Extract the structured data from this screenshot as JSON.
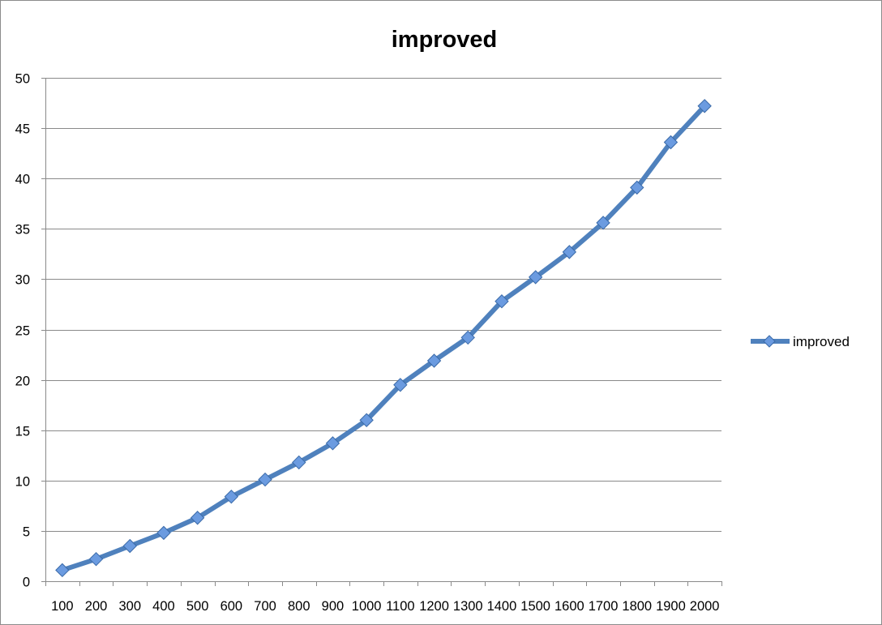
{
  "chart_data": {
    "type": "line",
    "title": "improved",
    "xlabel": "",
    "ylabel": "",
    "categories": [
      "100",
      "200",
      "300",
      "400",
      "500",
      "600",
      "700",
      "800",
      "900",
      "1000",
      "1100",
      "1200",
      "1300",
      "1400",
      "1500",
      "1600",
      "1700",
      "1800",
      "1900",
      "2000"
    ],
    "series": [
      {
        "name": "improved",
        "color": "#4f81bd",
        "marker_color": "#6b9be0",
        "marker": "diamond",
        "values": [
          1.1,
          2.2,
          3.5,
          4.8,
          6.3,
          8.4,
          10.1,
          11.8,
          13.7,
          16.0,
          19.5,
          21.9,
          24.2,
          27.8,
          30.2,
          32.7,
          35.6,
          39.1,
          43.6,
          47.2
        ]
      }
    ],
    "ylim": [
      0,
      50
    ],
    "yticks": [
      "0",
      "5",
      "10",
      "15",
      "20",
      "25",
      "30",
      "35",
      "40",
      "45",
      "50"
    ],
    "grid": true,
    "legend_position": "right"
  }
}
